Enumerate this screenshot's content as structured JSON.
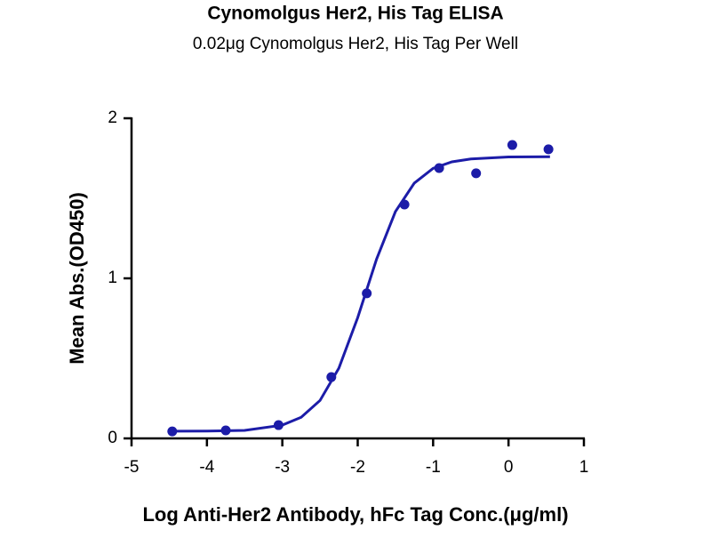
{
  "chart_data": {
    "type": "scatter",
    "title": "Cynomolgus Her2, His Tag ELISA",
    "subtitle": "0.02μg Cynomolgus Her2, His Tag Per Well",
    "x_label": "Log Anti-Her2 Antibody, hFc Tag Conc.(μg/ml)",
    "y_label": "Mean Abs.(OD450)",
    "color": "#1c1ca8",
    "x": [
      -4.46,
      -3.75,
      -3.05,
      -2.35,
      -1.88,
      -1.38,
      -0.92,
      -0.43,
      0.05,
      0.53
    ],
    "values": [
      0.044,
      0.05,
      0.083,
      0.383,
      0.906,
      1.461,
      1.689,
      1.656,
      1.833,
      1.806
    ],
    "fit": {
      "x": [
        -4.45,
        -4,
        -3.5,
        -3,
        -2.75,
        -2.5,
        -2.25,
        -2,
        -1.75,
        -1.5,
        -1.25,
        -1,
        -0.75,
        -0.5,
        0,
        0.55
      ],
      "values": [
        0.045,
        0.046,
        0.05,
        0.083,
        0.132,
        0.237,
        0.439,
        0.755,
        1.12,
        1.417,
        1.595,
        1.687,
        1.728,
        1.746,
        1.758,
        1.76
      ]
    },
    "xlim": [
      -5,
      1
    ],
    "xticks": [
      -5,
      -4,
      -3,
      -2,
      -1,
      0,
      1
    ],
    "ylim": [
      0,
      2
    ],
    "yticks": [
      0,
      1,
      2
    ]
  }
}
